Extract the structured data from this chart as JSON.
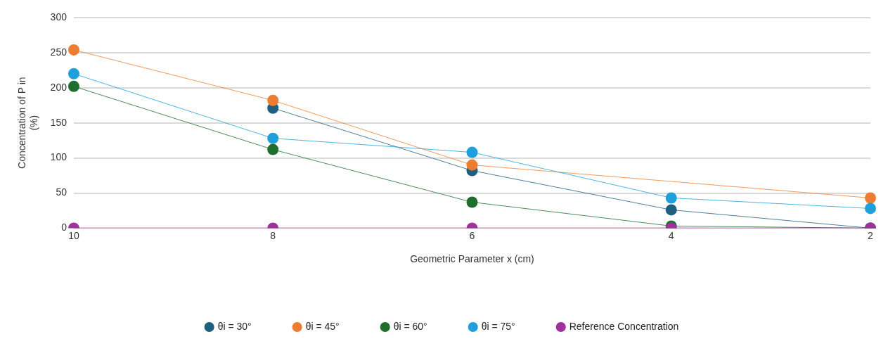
{
  "chart_data": {
    "type": "line",
    "xlabel": "Geometric Parameter x (cm)",
    "ylabel": "Concentration of P in (%)",
    "categories": [
      "10",
      "8",
      "6",
      "4",
      "2"
    ],
    "series": [
      {
        "name": "θi = 30°",
        "color": "#1f5f7f",
        "values": [
          null,
          171,
          82,
          26,
          0
        ]
      },
      {
        "name": "θi = 45°",
        "color": "#ed7d31",
        "values": [
          254,
          182,
          90,
          null,
          43
        ]
      },
      {
        "name": "θi = 60°",
        "color": "#1e6e2e",
        "values": [
          202,
          112,
          37,
          3,
          0
        ]
      },
      {
        "name": "θi = 75°",
        "color": "#1ea0dc",
        "values": [
          220,
          128,
          108,
          43,
          28
        ]
      },
      {
        "name": "Reference Concentration",
        "color": "#a0309a",
        "values": [
          0,
          0,
          0,
          0,
          0
        ]
      }
    ],
    "ylim": [
      0,
      300
    ],
    "yticks": [
      0,
      50,
      100,
      150,
      200,
      250,
      300
    ],
    "grid": "y",
    "legend": "bottom",
    "marker": "circle",
    "line_style": "solid"
  }
}
